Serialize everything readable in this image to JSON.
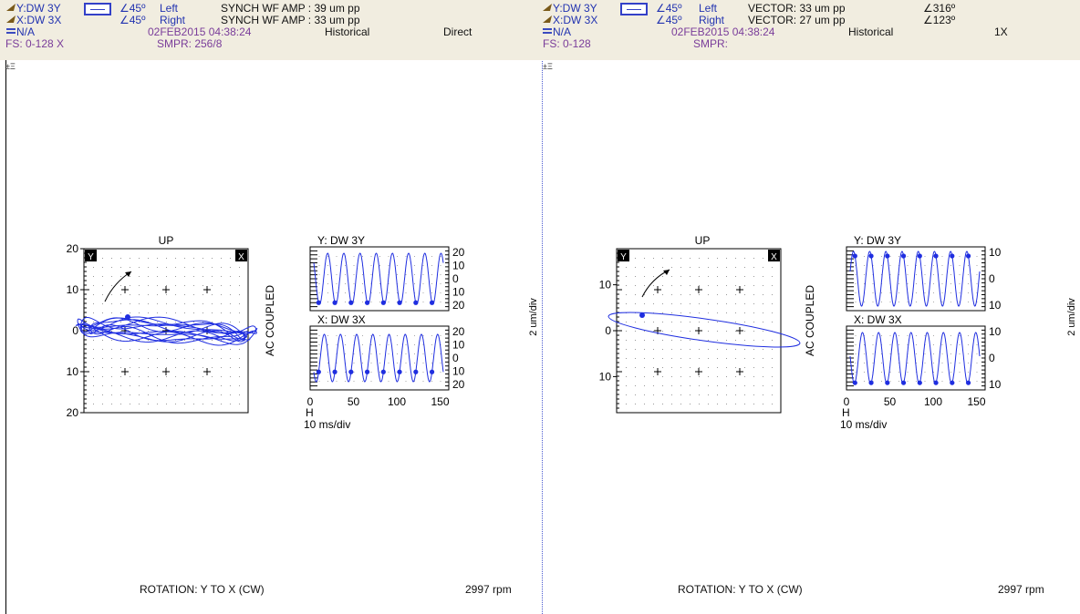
{
  "panels": [
    {
      "header": {
        "row1_probe": "Y:DW 3Y",
        "row1_angle": "∠45º",
        "row1_side": "Left",
        "row1_value": "SYNCH WF AMP : 39 um pp",
        "row1_phase": "",
        "row2_probe": "X:DW 3X",
        "row2_angle": "∠45º",
        "row2_side": "Right",
        "row2_value": "SYNCH WF AMP : 33 um pp",
        "row2_phase": "",
        "row3_label": "N/A",
        "row3_date": "02FEB2015 04:38:24",
        "row3_mode": "Historical",
        "row3_type": "Direct",
        "row4_fs": "FS: 0-128 X",
        "row4_smpr": "SMPR: 256/8"
      },
      "orbit": {
        "title": "UP",
        "y_badge": "Y",
        "x_badge": "X",
        "yticks": [
          "20",
          "10",
          "0",
          "10",
          "20"
        ],
        "side_label": "AC COUPLED",
        "scale_label": "2 um/div"
      },
      "wave_y": {
        "title": "Y: DW 3Y",
        "ticks": [
          "20",
          "10",
          "0",
          "10",
          "20"
        ]
      },
      "wave_x": {
        "title": "X: DW 3X",
        "ticks": [
          "20",
          "10",
          "0",
          "10",
          "20"
        ]
      },
      "time_axis": {
        "ticks": [
          "0",
          "50",
          "100",
          "150"
        ],
        "h": "H",
        "label": "10 ms/div"
      },
      "footer": {
        "rotation": "ROTATION: Y TO X (CW)",
        "speed": "2997 rpm"
      }
    },
    {
      "header": {
        "row1_probe": "Y:DW 3Y",
        "row1_angle": "∠45º",
        "row1_side": "Left",
        "row1_value": "VECTOR: 33 um pp",
        "row1_phase": "∠316º",
        "row2_probe": "X:DW 3X",
        "row2_angle": "∠45º",
        "row2_side": "Right",
        "row2_value": "VECTOR: 27 um pp",
        "row2_phase": "∠123º",
        "row3_label": "N/A",
        "row3_date": "02FEB2015 04:38:24",
        "row3_mode": "Historical",
        "row3_type": "1X",
        "row4_fs": "FS: 0-128",
        "row4_smpr": "SMPR:"
      },
      "orbit": {
        "title": "UP",
        "y_badge": "Y",
        "x_badge": "X",
        "yticks": [
          "10",
          "0",
          "10"
        ],
        "side_label": "AC COUPLED",
        "scale_label": "2 um/div"
      },
      "wave_y": {
        "title": "Y: DW 3Y",
        "ticks": [
          "10",
          "0",
          "10"
        ]
      },
      "wave_x": {
        "title": "X: DW 3X",
        "ticks": [
          "10",
          "0",
          "10"
        ]
      },
      "time_axis": {
        "ticks": [
          "0",
          "50",
          "100",
          "150"
        ],
        "h": "H",
        "label": "10 ms/div"
      },
      "footer": {
        "rotation": "ROTATION: Y TO X (CW)",
        "speed": "2997 rpm"
      }
    }
  ],
  "chart_data": [
    {
      "type": "scatter",
      "subtype": "orbit",
      "title": "UP",
      "description_series": "unfiltered direct orbit",
      "xlim": [
        -20,
        20
      ],
      "ylim": [
        -20,
        20
      ],
      "ytick_labels": [
        "20",
        "10",
        "0",
        "10",
        "20"
      ],
      "y_amplitude_um_pp": 39,
      "x_amplitude_um_pp": 33,
      "series": [
        {
          "name": "",
          "color": "#1f2ee0"
        }
      ]
    },
    {
      "type": "line",
      "subtype": "timebase",
      "title": "Y: DW 3Y",
      "x": [
        0,
        50,
        100,
        150
      ],
      "xlim": [
        0,
        160
      ],
      "ylim": [
        -20,
        20
      ],
      "cycles_visible": 8,
      "amplitude_um_pp": 39
    },
    {
      "type": "line",
      "subtype": "timebase",
      "title": "X: DW 3X",
      "x": [
        0,
        50,
        100,
        150
      ],
      "xlim": [
        0,
        160
      ],
      "ylim": [
        -20,
        20
      ],
      "cycles_visible": 8,
      "amplitude_um_pp": 33
    },
    {
      "type": "scatter",
      "subtype": "orbit",
      "title": "UP",
      "description_series": "1X filtered orbit (ellipse)",
      "xlim": [
        -16,
        16
      ],
      "ylim": [
        -16,
        16
      ],
      "ytick_labels": [
        "10",
        "0",
        "10"
      ],
      "y_vector_um_pp": 33,
      "y_phase_deg": 316,
      "x_vector_um_pp": 27,
      "x_phase_deg": 123,
      "series": [
        {
          "name": "",
          "color": "#1f2ee0"
        }
      ]
    },
    {
      "type": "line",
      "subtype": "timebase",
      "title": "Y: DW 3Y",
      "x": [
        0,
        50,
        100,
        150
      ],
      "xlim": [
        0,
        160
      ],
      "ylim": [
        -16,
        16
      ],
      "cycles_visible": 8,
      "amplitude_um_pp": 33
    },
    {
      "type": "line",
      "subtype": "timebase",
      "title": "X: DW 3X",
      "x": [
        0,
        50,
        100,
        150
      ],
      "xlim": [
        0,
        160
      ],
      "ylim": [
        -16,
        16
      ],
      "cycles_visible": 8,
      "amplitude_um_pp": 27
    }
  ],
  "colors": {
    "trace": "#1f2ee0",
    "header_bg": "#f1ede0",
    "probe_text": "#2233b0",
    "fs_text": "#7a3d9a"
  }
}
